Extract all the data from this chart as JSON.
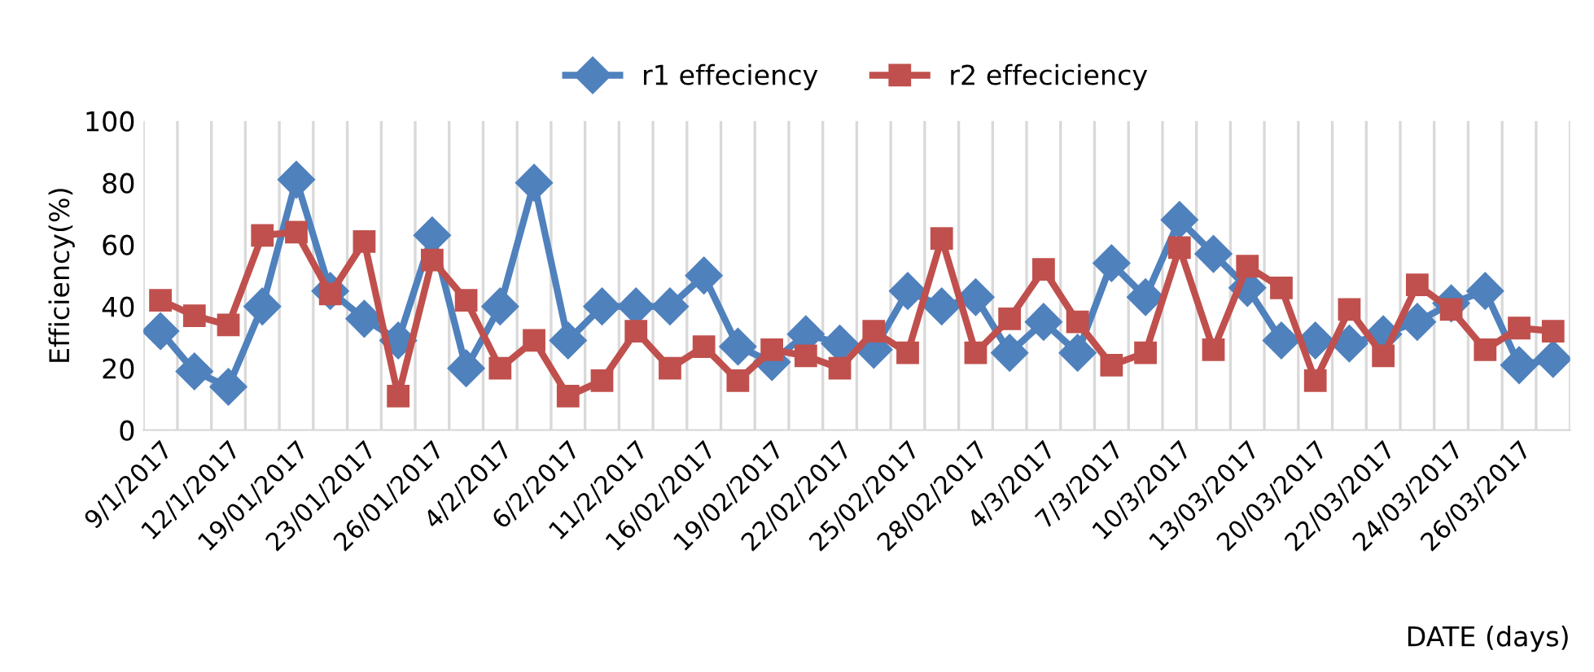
{
  "chart_data": {
    "type": "line",
    "categories": [
      "9/1/2017",
      null,
      "12/1/2017",
      null,
      "19/01/2017",
      null,
      "23/01/2017",
      null,
      "26/01/2017",
      null,
      "4/2/2017",
      null,
      "6/2/2017",
      null,
      "11/2/2017",
      null,
      "16/02/2017",
      null,
      "19/02/2017",
      null,
      "22/02/2017",
      null,
      "25/02/2017",
      null,
      "28/02/2017",
      null,
      "4/3/2017",
      null,
      "7/3/2017",
      null,
      "10/3/2017",
      null,
      "13/03/2017",
      null,
      "20/03/2017",
      null,
      "22/03/2017",
      null,
      "24/03/2017",
      null,
      "26/03/2017",
      null
    ],
    "series": [
      {
        "name": "r1 effeciency",
        "color": "#4f81bd",
        "marker": "diamond",
        "values": [
          32,
          19,
          14,
          40,
          81,
          45,
          36,
          29,
          63,
          20,
          40,
          80,
          29,
          40,
          40,
          40,
          50,
          27,
          22,
          31,
          28,
          26,
          45,
          40,
          43,
          25,
          35,
          25,
          54,
          43,
          68,
          57,
          46,
          29,
          29,
          28,
          31,
          35,
          41,
          45,
          21,
          23
        ]
      },
      {
        "name": "r2 effeciciency",
        "color": "#c0504d",
        "marker": "square",
        "values": [
          42,
          37,
          34,
          63,
          64,
          44,
          61,
          11,
          55,
          42,
          20,
          29,
          11,
          16,
          32,
          20,
          27,
          16,
          26,
          24,
          20,
          32,
          25,
          62,
          25,
          36,
          52,
          35,
          21,
          25,
          59,
          26,
          53,
          46,
          16,
          39,
          24,
          47,
          39,
          26,
          33,
          32
        ]
      }
    ],
    "xlabel": "DATE (days)",
    "ylabel": "Efficiency(%)",
    "ylim": [
      0,
      100
    ],
    "yticks": [
      0,
      20,
      40,
      60,
      80,
      100
    ],
    "grid": "x",
    "legend": "top",
    "line_style": "solid"
  }
}
